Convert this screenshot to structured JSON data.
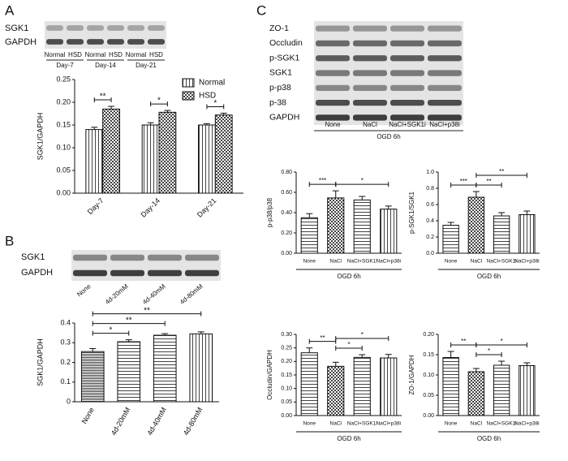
{
  "figure": {
    "panel_labels": [
      "A",
      "B",
      "C"
    ],
    "blot_a": {
      "rows": [
        "SGK1",
        "GAPDH"
      ],
      "lanes": [
        "Normal",
        "HSD",
        "Normal",
        "HSD",
        "Normal",
        "HSD"
      ],
      "groups": [
        "Day-7",
        "Day-14",
        "Day-21"
      ]
    },
    "blot_b": {
      "rows": [
        "SGK1",
        "GAPDH"
      ],
      "lanes": [
        "None",
        "4d-20mM",
        "4d-40mM",
        "4d-80mM"
      ]
    },
    "blot_c": {
      "rows": [
        "ZO-1",
        "Occludin",
        "p-SGK1",
        "SGK1",
        "p-p38",
        "p-38",
        "GAPDH"
      ],
      "lanes": [
        "None",
        "NaCl",
        "NaCl+SGK1i",
        "NaCl+p38i"
      ],
      "condition": "OGD 6h"
    }
  },
  "chart_data": [
    {
      "type": "bar",
      "ylabel": "SGK1/GAPDH",
      "categories": [
        "Day-7",
        "Day-14",
        "Day-21"
      ],
      "series": [
        {
          "name": "Normal",
          "color": "#444444",
          "values": [
            0.14,
            0.15,
            0.15
          ],
          "errors": [
            0.005,
            0.005,
            0.003
          ]
        },
        {
          "name": "HSD",
          "color": "#444444",
          "values": [
            0.185,
            0.178,
            0.172
          ],
          "errors": [
            0.006,
            0.004,
            0.004
          ]
        }
      ],
      "ylim": [
        0,
        0.25
      ],
      "yticks": [
        {
          "value": 0,
          "label": "0.00"
        },
        0.05,
        {
          "value": 0.1,
          "label": "0.10"
        },
        0.15,
        {
          "value": 0.2,
          "label": "0.20"
        },
        0.25
      ],
      "annotations": [
        {
          "label": "**",
          "category": 0
        },
        {
          "label": "*",
          "category": 1
        },
        {
          "label": "*",
          "category": 2
        }
      ],
      "legend": "upper right"
    },
    {
      "type": "bar",
      "ylabel": "SGK1/GAPDH",
      "categories": [
        "None",
        "4d-20mM",
        "4d-40mM",
        "4d-80mM"
      ],
      "values": [
        0.255,
        0.305,
        0.338,
        0.345
      ],
      "errors": [
        0.015,
        0.01,
        0.008,
        0.01
      ],
      "color": "#444444",
      "ylim": [
        0,
        0.4
      ],
      "yticks": [
        0,
        0.1,
        0.2,
        0.3,
        0.4
      ],
      "annotations": [
        {
          "label": "*",
          "between": [
            0,
            1
          ]
        },
        {
          "label": "**",
          "between": [
            0,
            2
          ]
        },
        {
          "label": "**",
          "between": [
            0,
            3
          ]
        }
      ]
    },
    {
      "type": "bar",
      "ylabel": "p-p38/p38",
      "xlabel": "OGD 6h",
      "categories": [
        "None",
        "NaCl",
        "NaCl+SGK1i",
        "NaCl+p38i"
      ],
      "values": [
        0.35,
        0.545,
        0.525,
        0.435
      ],
      "errors": [
        0.04,
        0.07,
        0.035,
        0.03
      ],
      "color": "#444444",
      "ylim": [
        0,
        0.8
      ],
      "yticks": [
        {
          "value": 0,
          "label": "0.00"
        },
        {
          "value": 0.2,
          "label": "0.20"
        },
        {
          "value": 0.4,
          "label": "0.40"
        },
        {
          "value": 0.6,
          "label": "0.60"
        },
        {
          "value": 0.8,
          "label": "0.80"
        }
      ],
      "annotations": [
        {
          "label": "***",
          "between": [
            0,
            1
          ]
        },
        {
          "label": "*",
          "between": [
            1,
            3
          ]
        }
      ]
    },
    {
      "type": "bar",
      "ylabel": "p-SGK1/SGK1",
      "xlabel": "OGD 6h",
      "categories": [
        "None",
        "NaCl",
        "NaCl+SGK1i",
        "NaCl+p38i"
      ],
      "values": [
        0.345,
        0.69,
        0.46,
        0.475
      ],
      "errors": [
        0.035,
        0.07,
        0.04,
        0.045
      ],
      "color": "#444444",
      "ylim": [
        0,
        1.0
      ],
      "yticks": [
        {
          "value": 0,
          "label": "0.0"
        },
        0.2,
        0.4,
        0.6,
        0.8,
        {
          "value": 1.0,
          "label": "1.0"
        }
      ],
      "annotations": [
        {
          "label": "***",
          "between": [
            0,
            1
          ]
        },
        {
          "label": "**",
          "between": [
            1,
            2
          ]
        },
        {
          "label": "**",
          "between": [
            1,
            3
          ]
        }
      ]
    },
    {
      "type": "bar",
      "ylabel": "Occludin/GAPDH",
      "xlabel": "OGD 6h",
      "categories": [
        "None",
        "NaCl",
        "NaCl+SGK1i",
        "NaCl+p38i"
      ],
      "values": [
        0.232,
        0.182,
        0.215,
        0.213
      ],
      "errors": [
        0.018,
        0.015,
        0.01,
        0.013
      ],
      "color": "#444444",
      "ylim": [
        0,
        0.3
      ],
      "yticks": [
        {
          "value": 0,
          "label": "0.00"
        },
        0.05,
        {
          "value": 0.1,
          "label": "0.10"
        },
        0.15,
        {
          "value": 0.2,
          "label": "0.20"
        },
        0.25,
        {
          "value": 0.3,
          "label": "0.30"
        }
      ],
      "annotations": [
        {
          "label": "**",
          "between": [
            0,
            1
          ]
        },
        {
          "label": "*",
          "between": [
            1,
            2
          ]
        },
        {
          "label": "*",
          "between": [
            1,
            3
          ]
        }
      ]
    },
    {
      "type": "bar",
      "ylabel": "ZO-1/GAPDH",
      "xlabel": "OGD 6h",
      "categories": [
        "None",
        "NaCl",
        "NaCl+SGK1i",
        "NaCl+p38i"
      ],
      "values": [
        0.143,
        0.108,
        0.124,
        0.123
      ],
      "errors": [
        0.015,
        0.008,
        0.01,
        0.007
      ],
      "color": "#444444",
      "ylim": [
        0,
        0.2
      ],
      "yticks": [
        {
          "value": 0,
          "label": "0.00"
        },
        0.05,
        {
          "value": 0.1,
          "label": "0.10"
        },
        0.15,
        {
          "value": 0.2,
          "label": "0.20"
        }
      ],
      "annotations": [
        {
          "label": "**",
          "between": [
            0,
            1
          ]
        },
        {
          "label": "*",
          "between": [
            1,
            2
          ]
        },
        {
          "label": "*",
          "between": [
            1,
            3
          ]
        }
      ]
    }
  ]
}
